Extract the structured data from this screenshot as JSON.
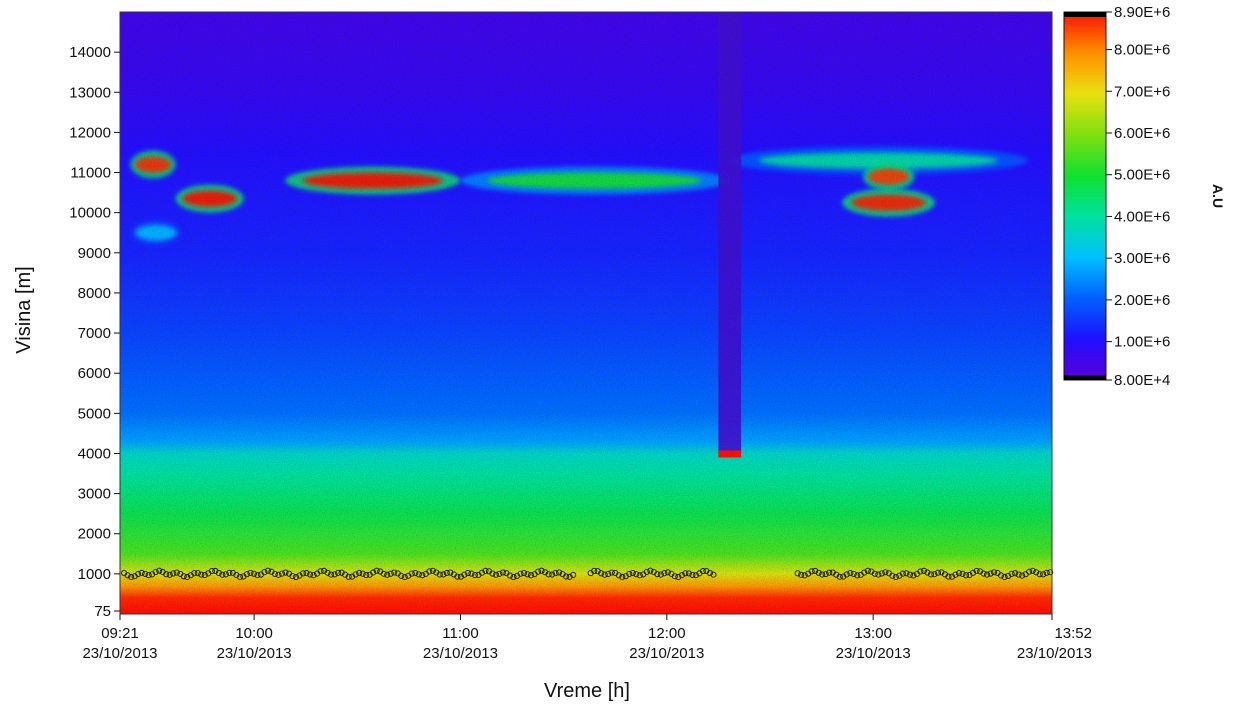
{
  "chart_data": {
    "type": "heatmap",
    "title": "",
    "xlabel": "Vreme [h]",
    "ylabel": "Visina [m]",
    "x_ticks": [
      {
        "time": "09:21",
        "date": "23/10/2013",
        "hour": 9.35
      },
      {
        "time": "10:00",
        "date": "23/10/2013",
        "hour": 10.0
      },
      {
        "time": "11:00",
        "date": "23/10/2013",
        "hour": 11.0
      },
      {
        "time": "12:00",
        "date": "23/10/2013",
        "hour": 12.0
      },
      {
        "time": "13:00",
        "date": "23/10/2013",
        "hour": 13.0
      },
      {
        "time": "13:52",
        "date": "23/10/2013",
        "hour": 13.8667
      }
    ],
    "xlim_hours": [
      9.35,
      13.8667
    ],
    "y_ticks": [
      {
        "value": 75,
        "label": "75"
      },
      {
        "value": 1000,
        "label": "1000"
      },
      {
        "value": 2000,
        "label": "2000"
      },
      {
        "value": 3000,
        "label": "3000"
      },
      {
        "value": 4000,
        "label": "4000"
      },
      {
        "value": 5000,
        "label": "5000"
      },
      {
        "value": 6000,
        "label": "6000"
      },
      {
        "value": 7000,
        "label": "7000"
      },
      {
        "value": 8000,
        "label": "8000"
      },
      {
        "value": 9000,
        "label": "9000"
      },
      {
        "value": 10000,
        "label": "10000"
      },
      {
        "value": 11000,
        "label": "11000"
      },
      {
        "value": 12000,
        "label": "12000"
      },
      {
        "value": 13000,
        "label": "13000"
      },
      {
        "value": 14000,
        "label": "14000"
      }
    ],
    "ylim": [
      0,
      15000
    ],
    "colorbar": {
      "title": "A.U",
      "ticks": [
        "8.90E+6",
        "8.00E+6",
        "7.00E+6",
        "6.00E+6",
        "5.00E+6",
        "4.00E+6",
        "3.00E+6",
        "2.00E+6",
        "1.00E+6",
        "8.00E+4"
      ],
      "values": [
        8900000,
        8000000,
        7000000,
        6000000,
        5000000,
        4000000,
        3000000,
        2000000,
        1000000,
        80000
      ],
      "colors_low_to_high": [
        "#000000",
        "#5a00d8",
        "#2010ff",
        "#0060ff",
        "#00c0ff",
        "#00e0a0",
        "#10e030",
        "#80e010",
        "#e8e010",
        "#ff9000",
        "#ff1000",
        "#000000"
      ]
    },
    "intensity_profile_by_height": [
      {
        "height": 75,
        "value": 8900000
      },
      {
        "height": 400,
        "value": 8700000
      },
      {
        "height": 700,
        "value": 7800000
      },
      {
        "height": 1000,
        "value": 6800000
      },
      {
        "height": 1500,
        "value": 5500000
      },
      {
        "height": 2500,
        "value": 4700000
      },
      {
        "height": 3500,
        "value": 4000000
      },
      {
        "height": 4000,
        "value": 3600000
      },
      {
        "height": 4300,
        "value": 2700000
      },
      {
        "height": 5000,
        "value": 2200000
      },
      {
        "height": 7000,
        "value": 1700000
      },
      {
        "height": 9000,
        "value": 1300000
      },
      {
        "height": 11500,
        "value": 1000000
      },
      {
        "height": 13000,
        "value": 700000
      },
      {
        "height": 15000,
        "value": 500000
      }
    ],
    "cloud_layers": [
      {
        "start_hour": 9.4,
        "end_hour": 9.62,
        "height": 11200,
        "peak_value": 8700000
      },
      {
        "start_hour": 9.62,
        "end_hour": 9.95,
        "height": 10350,
        "peak_value": 8900000
      },
      {
        "start_hour": 9.4,
        "end_hour": 9.65,
        "height": 9500,
        "peak_value": 3000000
      },
      {
        "start_hour": 10.15,
        "end_hour": 11.0,
        "height": 10800,
        "peak_value": 8900000
      },
      {
        "start_hour": 11.0,
        "end_hour": 12.3,
        "height": 10800,
        "peak_value": 5000000
      },
      {
        "start_hour": 12.3,
        "end_hour": 13.75,
        "height": 11300,
        "peak_value": 4000000
      },
      {
        "start_hour": 12.85,
        "end_hour": 13.3,
        "height": 10250,
        "peak_value": 8800000
      },
      {
        "start_hour": 12.95,
        "end_hour": 13.2,
        "height": 10900,
        "peak_value": 8600000
      }
    ],
    "cloud_base_points": {
      "marker": "open circle",
      "height_approx": 1000,
      "gaps_hours": [
        [
          11.55,
          11.62
        ],
        [
          12.23,
          12.62
        ]
      ]
    },
    "precipitation_columns": [
      {
        "start_hour": 12.25,
        "end_hour": 12.36,
        "from_height": 4000,
        "to_height": 15000,
        "base_value": 8900000
      }
    ],
    "grid": false,
    "legend": "colorbar-right"
  }
}
